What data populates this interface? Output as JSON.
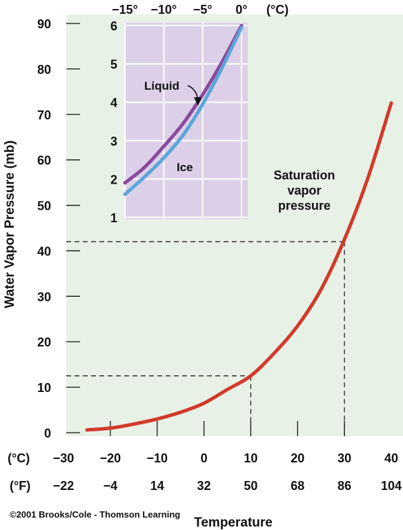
{
  "chart_data": [
    {
      "type": "line",
      "title": "",
      "xlabel": "Temperature",
      "ylabel": "Water Vapor Pressure (mb)",
      "x_unit_c": "(°C)",
      "x_unit_f": "(°F)",
      "xlim_c": [
        -30,
        40
      ],
      "ylim": [
        0,
        90
      ],
      "x_ticks_c": [
        "−30",
        "−20",
        "−10",
        "0",
        "10",
        "20",
        "30",
        "40"
      ],
      "x_ticks_f": [
        "−22",
        "−4",
        "14",
        "32",
        "50",
        "68",
        "86",
        "104"
      ],
      "y_ticks": [
        "0",
        "10",
        "20",
        "30",
        "40",
        "50",
        "60",
        "70",
        "80",
        "90"
      ],
      "series": [
        {
          "name": "Saturation vapor pressure",
          "color": "#d23a2a",
          "x": [
            -25,
            -20,
            -15,
            -10,
            -5,
            0,
            5,
            10,
            15,
            20,
            25,
            30,
            35,
            40
          ],
          "y": [
            0.6,
            1.0,
            1.9,
            3.0,
            4.5,
            6.5,
            9.5,
            12.5,
            17.5,
            23.5,
            31.5,
            42.5,
            56.0,
            72.5
          ]
        }
      ],
      "reference_lines": [
        {
          "x_c": 10,
          "y": 12.5
        },
        {
          "x_c": 30,
          "y": 42.0
        }
      ],
      "annotation": "Saturation\nvapor\npressure",
      "grid": false,
      "background": "#e8f1e6"
    },
    {
      "type": "line",
      "title": "",
      "xlabel": "",
      "ylabel": "",
      "x_unit": "(°C)",
      "xlim": [
        -15,
        0
      ],
      "ylim": [
        1,
        6
      ],
      "x_ticks": [
        "−15°",
        "−10°",
        "−5°",
        "0°"
      ],
      "y_ticks": [
        "1",
        "2",
        "3",
        "4",
        "5",
        "6"
      ],
      "grid": true,
      "background": "#dcd0e8",
      "series": [
        {
          "name": "Liquid",
          "color": "#8a4a9c",
          "x": [
            -15,
            -12.5,
            -10,
            -7.5,
            -5,
            -2.5,
            0
          ],
          "y": [
            1.9,
            2.3,
            2.85,
            3.45,
            4.2,
            5.05,
            6.0
          ]
        },
        {
          "name": "Ice",
          "color": "#5aa6d8",
          "x": [
            -15,
            -12.5,
            -10,
            -7.5,
            -5,
            -2.5,
            0
          ],
          "y": [
            1.6,
            2.05,
            2.55,
            3.15,
            3.95,
            4.9,
            5.95
          ]
        }
      ]
    }
  ],
  "credit": "©2001 Brooks/Cole - Thomson Learning"
}
